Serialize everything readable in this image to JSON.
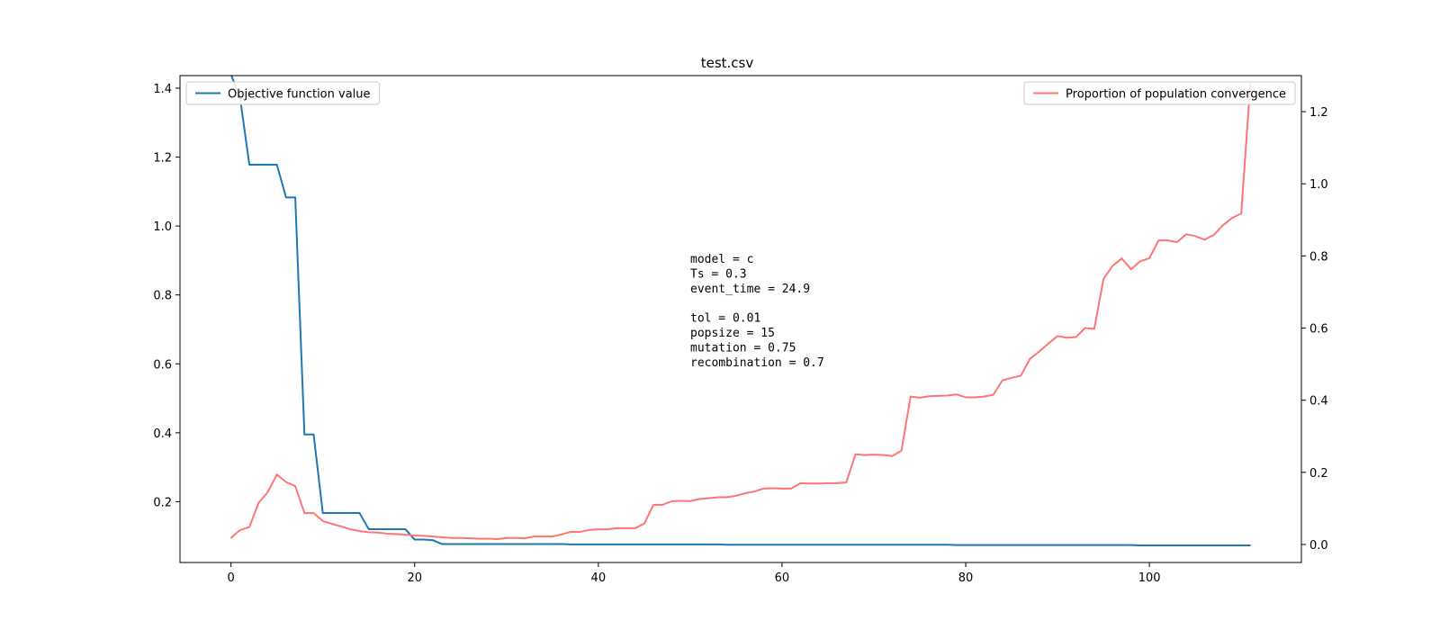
{
  "chart_data": {
    "type": "line",
    "title": "test.csv",
    "xlabel": "",
    "ylabel": "",
    "y2label": "",
    "xlim": [
      -5.55,
      116.55
    ],
    "ylim": [
      0.0235,
      1.4365
    ],
    "y2lim": [
      -0.05,
      1.3
    ],
    "x_ticks": [
      0,
      20,
      40,
      60,
      80,
      100
    ],
    "y_ticks": [
      0.2,
      0.4,
      0.6,
      0.8,
      1.0,
      1.2,
      1.4
    ],
    "y_tick_labels": [
      "0.2",
      "0.4",
      "0.6",
      "0.8",
      "1.0",
      "1.2",
      "1.4"
    ],
    "y2_ticks": [
      0.0,
      0.2,
      0.4,
      0.6,
      0.8,
      1.0,
      1.2
    ],
    "y2_tick_labels": [
      "0.0",
      "0.2",
      "0.4",
      "0.6",
      "0.8",
      "1.0",
      "1.2"
    ],
    "grid": false,
    "series": [
      {
        "name": "Objective function value",
        "axis": "left",
        "color": "#1f77b4",
        "legend_position": "upper-left",
        "x": [
          0,
          1,
          2,
          3,
          4,
          5,
          6,
          7,
          8,
          9,
          10,
          11,
          12,
          13,
          14,
          15,
          16,
          17,
          18,
          19,
          20,
          21,
          22,
          23,
          24,
          25,
          26,
          27,
          28,
          29,
          30,
          31,
          32,
          33,
          34,
          35,
          36,
          37,
          38,
          39,
          40,
          41,
          42,
          43,
          44,
          45,
          46,
          47,
          48,
          49,
          50,
          51,
          52,
          53,
          54,
          55,
          56,
          57,
          58,
          59,
          60,
          61,
          62,
          63,
          64,
          65,
          66,
          67,
          68,
          69,
          70,
          71,
          72,
          73,
          74,
          75,
          76,
          77,
          78,
          79,
          80,
          81,
          82,
          83,
          84,
          85,
          86,
          87,
          88,
          89,
          90,
          91,
          92,
          93,
          94,
          95,
          96,
          97,
          98,
          99,
          100,
          101,
          102,
          103,
          104,
          105,
          106,
          107,
          108,
          109,
          110,
          111
        ],
        "values": [
          1.44,
          1.37,
          1.178,
          1.178,
          1.178,
          1.178,
          1.083,
          1.083,
          0.395,
          0.395,
          0.167,
          0.167,
          0.167,
          0.167,
          0.167,
          0.12,
          0.12,
          0.12,
          0.12,
          0.12,
          0.09,
          0.09,
          0.088,
          0.077,
          0.077,
          0.077,
          0.077,
          0.077,
          0.077,
          0.077,
          0.077,
          0.077,
          0.077,
          0.077,
          0.077,
          0.077,
          0.077,
          0.076,
          0.076,
          0.076,
          0.076,
          0.076,
          0.076,
          0.076,
          0.076,
          0.076,
          0.076,
          0.076,
          0.076,
          0.076,
          0.076,
          0.076,
          0.076,
          0.076,
          0.075,
          0.075,
          0.075,
          0.075,
          0.075,
          0.075,
          0.075,
          0.075,
          0.075,
          0.075,
          0.075,
          0.075,
          0.075,
          0.075,
          0.075,
          0.075,
          0.075,
          0.075,
          0.075,
          0.075,
          0.075,
          0.075,
          0.075,
          0.075,
          0.075,
          0.074,
          0.074,
          0.074,
          0.074,
          0.074,
          0.074,
          0.074,
          0.074,
          0.074,
          0.074,
          0.074,
          0.074,
          0.074,
          0.074,
          0.074,
          0.074,
          0.074,
          0.074,
          0.074,
          0.074,
          0.073,
          0.073,
          0.073,
          0.073,
          0.073,
          0.073,
          0.073,
          0.073,
          0.073,
          0.073,
          0.073,
          0.073,
          0.073
        ]
      },
      {
        "name": "Proportion of population convergence",
        "axis": "right",
        "color": "#ff7575",
        "legend_position": "upper-right",
        "x": [
          0,
          1,
          2,
          3,
          4,
          5,
          6,
          7,
          8,
          9,
          10,
          11,
          12,
          13,
          14,
          15,
          16,
          17,
          18,
          19,
          20,
          21,
          22,
          23,
          24,
          25,
          26,
          27,
          28,
          29,
          30,
          31,
          32,
          33,
          34,
          35,
          36,
          37,
          38,
          39,
          40,
          41,
          42,
          43,
          44,
          45,
          46,
          47,
          48,
          49,
          50,
          51,
          52,
          53,
          54,
          55,
          56,
          57,
          58,
          59,
          60,
          61,
          62,
          63,
          64,
          65,
          66,
          67,
          68,
          69,
          70,
          71,
          72,
          73,
          74,
          75,
          76,
          77,
          78,
          79,
          80,
          81,
          82,
          83,
          84,
          85,
          86,
          87,
          88,
          89,
          90,
          91,
          92,
          93,
          94,
          95,
          96,
          97,
          98,
          99,
          100,
          101,
          102,
          103,
          104,
          105,
          106,
          107,
          108,
          109,
          110,
          111
        ],
        "values": [
          0.018,
          0.04,
          0.048,
          0.115,
          0.145,
          0.194,
          0.173,
          0.162,
          0.087,
          0.087,
          0.065,
          0.057,
          0.05,
          0.042,
          0.037,
          0.034,
          0.033,
          0.03,
          0.029,
          0.027,
          0.025,
          0.024,
          0.022,
          0.02,
          0.018,
          0.018,
          0.017,
          0.016,
          0.016,
          0.015,
          0.018,
          0.018,
          0.017,
          0.022,
          0.022,
          0.022,
          0.028,
          0.035,
          0.035,
          0.04,
          0.042,
          0.042,
          0.045,
          0.045,
          0.045,
          0.058,
          0.11,
          0.11,
          0.12,
          0.121,
          0.12,
          0.126,
          0.128,
          0.131,
          0.131,
          0.135,
          0.142,
          0.147,
          0.155,
          0.156,
          0.155,
          0.155,
          0.17,
          0.169,
          0.169,
          0.17,
          0.17,
          0.172,
          0.25,
          0.248,
          0.249,
          0.248,
          0.245,
          0.26,
          0.41,
          0.407,
          0.411,
          0.412,
          0.413,
          0.416,
          0.408,
          0.408,
          0.41,
          0.415,
          0.455,
          0.462,
          0.468,
          0.515,
          0.535,
          0.557,
          0.578,
          0.573,
          0.575,
          0.6,
          0.598,
          0.736,
          0.773,
          0.793,
          0.763,
          0.785,
          0.794,
          0.843,
          0.843,
          0.838,
          0.86,
          0.855,
          0.845,
          0.858,
          0.885,
          0.905,
          0.918,
          1.28
        ]
      }
    ],
    "annotation": {
      "lines": [
        "model = c",
        "Ts = 0.3",
        "event_time = 24.9",
        "",
        "tol = 0.01",
        "popsize = 15",
        "mutation = 0.75",
        "recombination = 0.7"
      ]
    }
  }
}
